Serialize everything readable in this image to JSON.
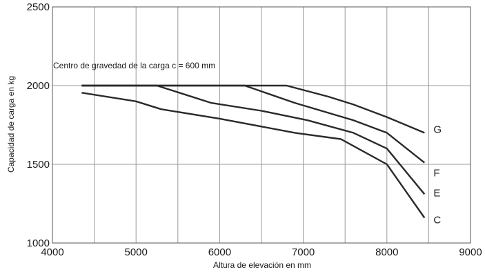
{
  "chart_data": {
    "type": "line",
    "title": "",
    "xlabel": "Altura de elevación en mm",
    "ylabel": "Capacidad de carga en kg",
    "xlim": [
      4000,
      9000
    ],
    "ylim": [
      1000,
      2500
    ],
    "xticks": [
      4000,
      5000,
      6000,
      7000,
      8000,
      9000
    ],
    "yticks": [
      1000,
      1500,
      2000,
      2500
    ],
    "grid": true,
    "annotation": "Centro de gravedad de la carga c = 600 mm",
    "series": [
      {
        "name": "G",
        "x": [
          4350,
          6800,
          7300,
          7600,
          8000,
          8450
        ],
        "y": [
          2000,
          2000,
          1930,
          1880,
          1800,
          1700
        ]
      },
      {
        "name": "F",
        "x": [
          4350,
          6300,
          6900,
          7600,
          8000,
          8450
        ],
        "y": [
          2000,
          2000,
          1890,
          1780,
          1700,
          1510
        ]
      },
      {
        "name": "E",
        "x": [
          4350,
          5250,
          5900,
          6500,
          7050,
          7600,
          8000,
          8450
        ],
        "y": [
          2000,
          2000,
          1890,
          1840,
          1780,
          1700,
          1600,
          1310
        ]
      },
      {
        "name": "C",
        "x": [
          4350,
          5000,
          5300,
          6000,
          6900,
          7450,
          8000,
          8450
        ],
        "y": [
          1955,
          1900,
          1850,
          1790,
          1700,
          1660,
          1500,
          1160
        ]
      }
    ]
  }
}
